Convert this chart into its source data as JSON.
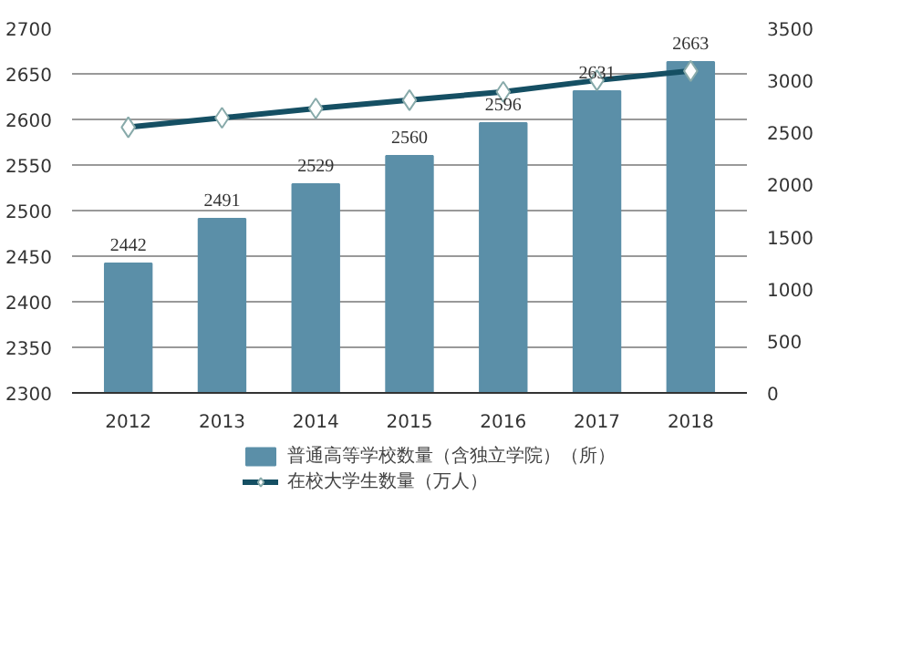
{
  "chart_data": {
    "type": "bar",
    "categories": [
      "2012",
      "2013",
      "2014",
      "2015",
      "2016",
      "2017",
      "2018"
    ],
    "series": [
      {
        "name": "普通高等学校数量（含独立学院）（所）",
        "color": "#5b8fa8",
        "values": [
          2442,
          2491,
          2529,
          2560,
          2596,
          2631,
          2663
        ],
        "data_labels": true
      },
      {
        "name": "在校大学生数量（万人）",
        "type": "line",
        "axis": "y2",
        "color": "#154f63",
        "marker": "diamond",
        "values": [
          2550,
          2640,
          2730,
          2810,
          2890,
          3000,
          3090
        ]
      }
    ],
    "ylim": [
      2300,
      2700
    ],
    "yticks": [
      2300,
      2350,
      2400,
      2450,
      2500,
      2550,
      2600,
      2650,
      2700
    ],
    "y2lim": [
      0,
      3500
    ],
    "y2ticks": [
      0,
      500,
      1000,
      1500,
      2000,
      2500,
      3000,
      3500
    ],
    "grid": "y",
    "legend": "bottom"
  }
}
